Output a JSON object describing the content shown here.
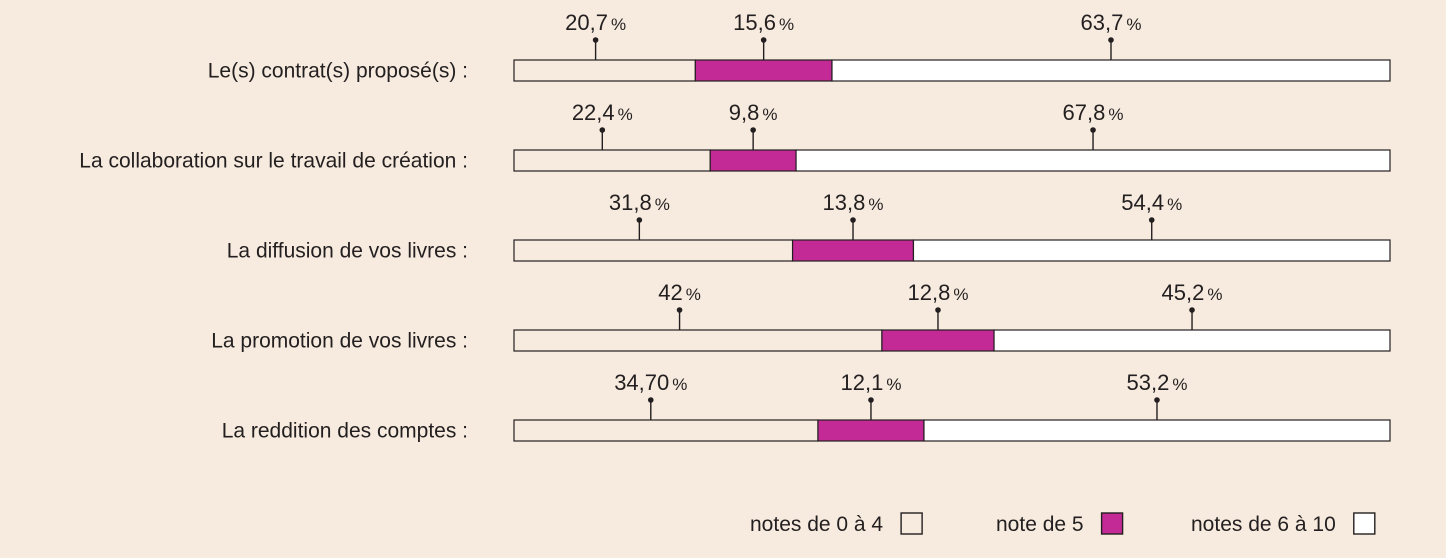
{
  "colors": {
    "background": "#f6ebde",
    "low": "#f6ebde",
    "mid": "#c42a96",
    "high": "#ffffff",
    "stroke": "#231f20"
  },
  "chart_data": {
    "type": "bar",
    "orientation": "horizontal",
    "stacked": true,
    "percent_symbol": "%",
    "categories": [
      "Le(s) contrat(s) proposé(s) :",
      "La collaboration sur le travail de création :",
      "La diffusion de vos livres :",
      "La promotion de vos livres :",
      "La reddition des comptes :"
    ],
    "series": [
      {
        "name": "notes de 0 à 4",
        "values": [
          20.7,
          22.4,
          31.8,
          42,
          34.7
        ],
        "labels": [
          "20,7",
          "22,4",
          "31,8",
          "42",
          "34,70"
        ],
        "color": "#f6ebde"
      },
      {
        "name": "note de 5",
        "values": [
          15.6,
          9.8,
          13.8,
          12.8,
          12.1
        ],
        "labels": [
          "15,6",
          "9,8",
          "13,8",
          "12,8",
          "12,1"
        ],
        "color": "#c42a96"
      },
      {
        "name": "notes de 6 à 10",
        "values": [
          63.7,
          67.8,
          54.4,
          45.2,
          53.2
        ],
        "labels": [
          "63,7",
          "67,8",
          "54,4",
          "45,2",
          "53,2"
        ],
        "color": "#ffffff"
      }
    ],
    "xlim": [
      0,
      100
    ],
    "grid": false,
    "legend_position": "bottom-right"
  }
}
